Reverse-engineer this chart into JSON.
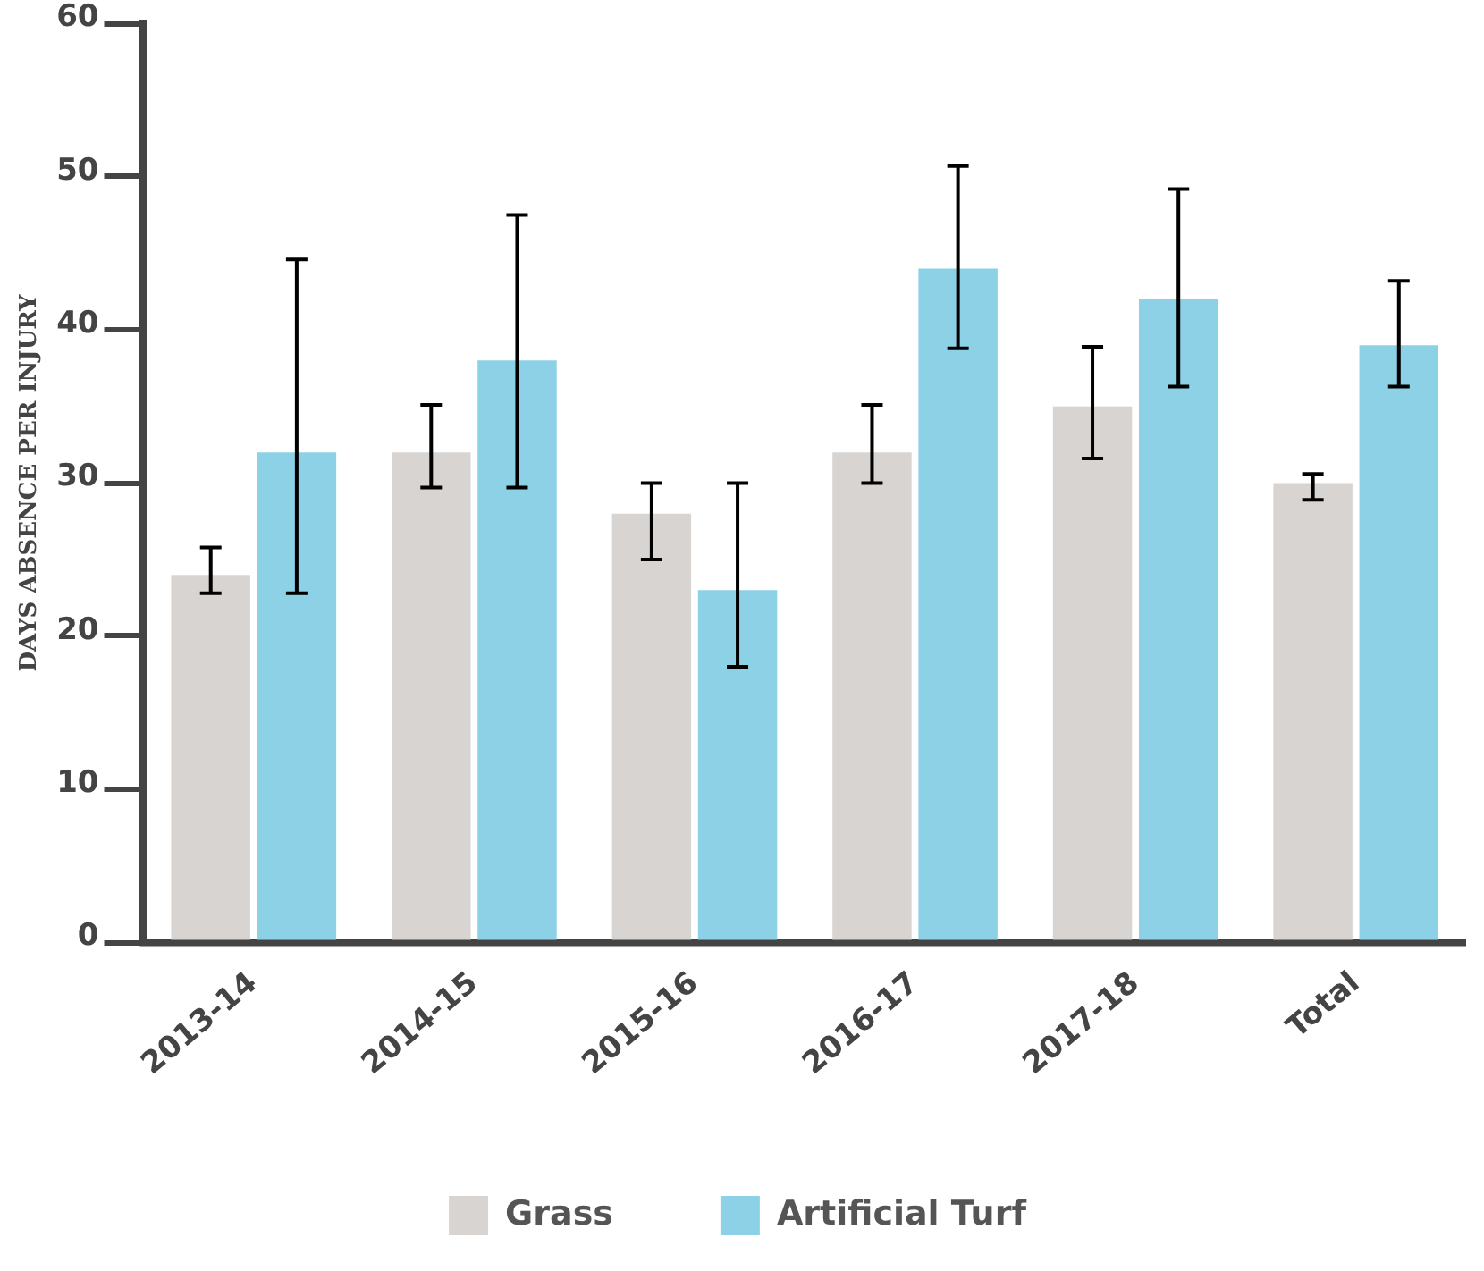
{
  "chart_data": {
    "type": "bar",
    "ylabel": "DAYS ABSENCE PER INJURY",
    "categories": [
      "2013-14",
      "2014-15",
      "2015-16",
      "2016-17",
      "2017-18",
      "Total"
    ],
    "series": [
      {
        "name": "Grass",
        "color": "#d8d4d1",
        "values": [
          24,
          32,
          28,
          32,
          35,
          30
        ],
        "errors": [
          [
            22.8,
            25.8
          ],
          [
            29.7,
            35.1
          ],
          [
            25,
            30
          ],
          [
            30,
            35.1
          ],
          [
            31.6,
            38.9
          ],
          [
            28.9,
            30.6
          ]
        ]
      },
      {
        "name": "Artificial Turf",
        "color": "#8dd1e7",
        "values": [
          32,
          38,
          23,
          44,
          42,
          39
        ],
        "errors": [
          [
            22.8,
            44.6
          ],
          [
            29.7,
            47.5
          ],
          [
            18,
            30
          ],
          [
            38.8,
            50.7
          ],
          [
            36.3,
            49.2
          ],
          [
            36.3,
            43.2
          ]
        ]
      }
    ],
    "ylim": [
      0,
      60
    ],
    "yticks": [
      0,
      10,
      20,
      30,
      40,
      50,
      60
    ],
    "grid": false,
    "legend": "bottom"
  }
}
